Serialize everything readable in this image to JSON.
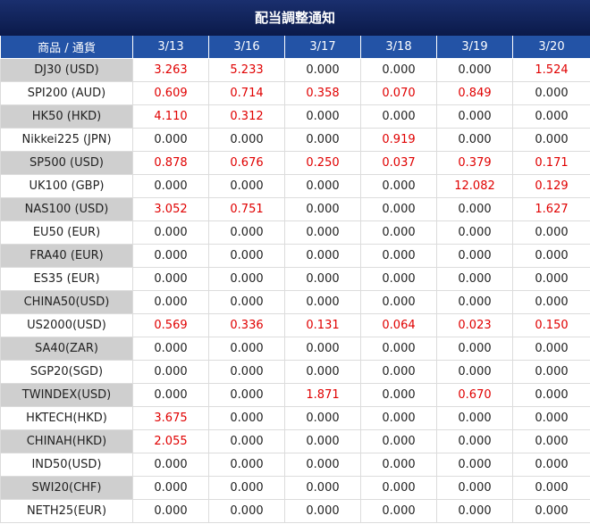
{
  "title": "配当調整通知",
  "table": {
    "header": [
      "商品 / 通貨",
      "3/13",
      "3/16",
      "3/17",
      "3/18",
      "3/19",
      "3/20"
    ],
    "rows": [
      [
        "DJ30 (USD)",
        "3.263",
        "5.233",
        "0.000",
        "0.000",
        "0.000",
        "1.524"
      ],
      [
        "SPI200 (AUD)",
        "0.609",
        "0.714",
        "0.358",
        "0.070",
        "0.849",
        "0.000"
      ],
      [
        "HK50 (HKD)",
        "4.110",
        "0.312",
        "0.000",
        "0.000",
        "0.000",
        "0.000"
      ],
      [
        "Nikkei225 (JPN)",
        "0.000",
        "0.000",
        "0.000",
        "0.919",
        "0.000",
        "0.000"
      ],
      [
        "SP500 (USD)",
        "0.878",
        "0.676",
        "0.250",
        "0.037",
        "0.379",
        "0.171"
      ],
      [
        "UK100 (GBP)",
        "0.000",
        "0.000",
        "0.000",
        "0.000",
        "12.082",
        "0.129"
      ],
      [
        "NAS100 (USD)",
        "3.052",
        "0.751",
        "0.000",
        "0.000",
        "0.000",
        "1.627"
      ],
      [
        "EU50 (EUR)",
        "0.000",
        "0.000",
        "0.000",
        "0.000",
        "0.000",
        "0.000"
      ],
      [
        "FRA40 (EUR)",
        "0.000",
        "0.000",
        "0.000",
        "0.000",
        "0.000",
        "0.000"
      ],
      [
        "ES35 (EUR)",
        "0.000",
        "0.000",
        "0.000",
        "0.000",
        "0.000",
        "0.000"
      ],
      [
        "CHINA50(USD)",
        "0.000",
        "0.000",
        "0.000",
        "0.000",
        "0.000",
        "0.000"
      ],
      [
        "US2000(USD)",
        "0.569",
        "0.336",
        "0.131",
        "0.064",
        "0.023",
        "0.150"
      ],
      [
        "SA40(ZAR)",
        "0.000",
        "0.000",
        "0.000",
        "0.000",
        "0.000",
        "0.000"
      ],
      [
        "SGP20(SGD)",
        "0.000",
        "0.000",
        "0.000",
        "0.000",
        "0.000",
        "0.000"
      ],
      [
        "TWINDEX(USD)",
        "0.000",
        "0.000",
        "1.871",
        "0.000",
        "0.670",
        "0.000"
      ],
      [
        "HKTECH(HKD)",
        "3.675",
        "0.000",
        "0.000",
        "0.000",
        "0.000",
        "0.000"
      ],
      [
        "CHINAH(HKD)",
        "2.055",
        "0.000",
        "0.000",
        "0.000",
        "0.000",
        "0.000"
      ],
      [
        "IND50(USD)",
        "0.000",
        "0.000",
        "0.000",
        "0.000",
        "0.000",
        "0.000"
      ],
      [
        "SWI20(CHF)",
        "0.000",
        "0.000",
        "0.000",
        "0.000",
        "0.000",
        "0.000"
      ],
      [
        "NETH25(EUR)",
        "0.000",
        "0.000",
        "0.000",
        "0.000",
        "0.000",
        "0.000"
      ]
    ]
  }
}
